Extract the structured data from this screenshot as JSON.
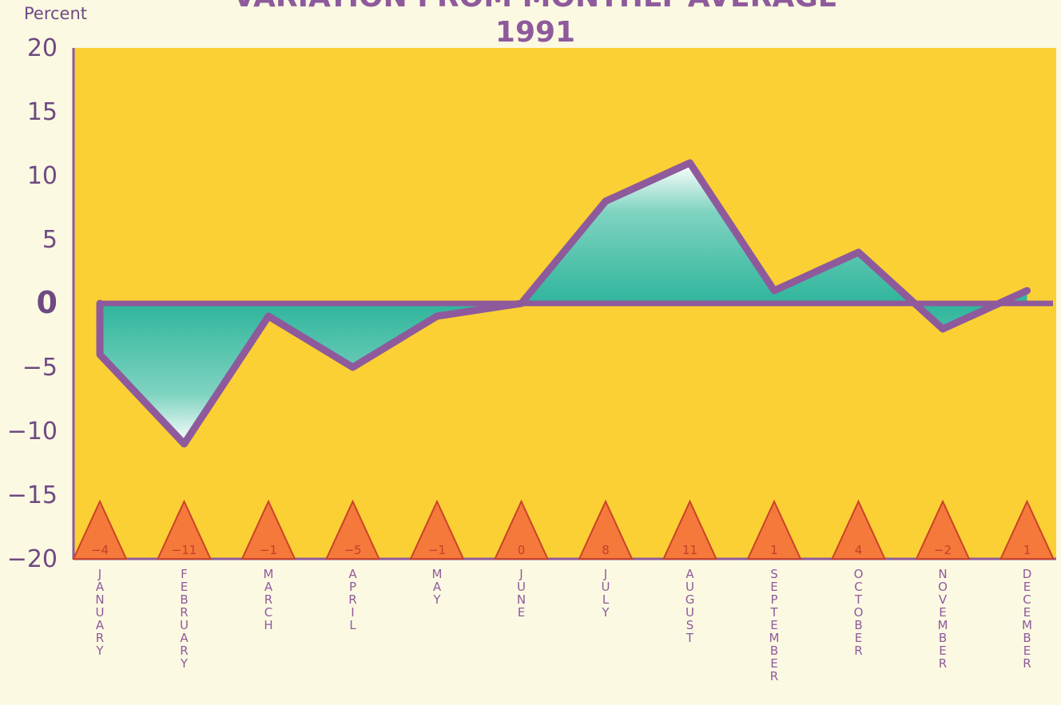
{
  "chart_data": {
    "type": "area",
    "title": "VARIATION FROM MONTHLY AVERAGE",
    "subtitle": "1991",
    "ylabel": "Percent",
    "xlabel": "",
    "ylim": [
      -20,
      20
    ],
    "yticks": [
      "20",
      "15",
      "10",
      "5",
      "0",
      "−5",
      "−10",
      "−15",
      "−20"
    ],
    "categories": [
      "JANUARY",
      "FEBRUARY",
      "MARCH",
      "APRIL",
      "MAY",
      "JUNE",
      "JULY",
      "AUGUST",
      "SEPTEMBER",
      "OCTOBER",
      "NOVEMBER",
      "DECEMBER"
    ],
    "values": [
      -4,
      -11,
      -1,
      -5,
      -1,
      0,
      8,
      11,
      1,
      4,
      -2,
      1
    ],
    "value_labels": [
      "−4",
      "−11",
      "−1",
      "−5",
      "−1",
      "0",
      "8",
      "11",
      "1",
      "4",
      "−2",
      "1"
    ],
    "grid": false,
    "legend": "none",
    "colors": {
      "plot_background": "#fbd034",
      "line": "#8e5a9c",
      "fill": "#2fb59c",
      "markers": "#f4793a",
      "page": "#fcf9e3"
    }
  }
}
